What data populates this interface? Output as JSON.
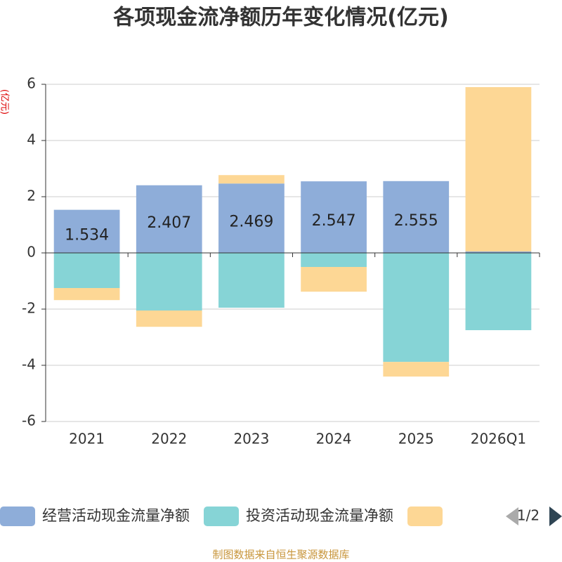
{
  "chart_data": {
    "type": "bar",
    "stacked": true,
    "title": "各项现金流净额历年变化情况(亿元)",
    "y_label": "(亿元)",
    "categories": [
      "2021",
      "2022",
      "2023",
      "2024",
      "2025",
      "2026Q1"
    ],
    "series": [
      {
        "name": "经营活动现金流量净额",
        "color": "#8eadd9",
        "values": [
          1.534,
          2.407,
          2.469,
          2.547,
          2.555,
          0.05
        ],
        "show_labels": true
      },
      {
        "name": "投资活动现金流量净额",
        "color": "#86d4d6",
        "values": [
          -1.25,
          -2.05,
          -1.95,
          -0.5,
          -3.88,
          -2.75
        ]
      },
      {
        "color": "#fdd795",
        "values": [
          -0.43,
          -0.58,
          0.3,
          -0.88,
          -0.52,
          5.85
        ]
      }
    ],
    "ylim": [
      -6,
      6
    ],
    "yticks": [
      -6,
      -4,
      -2,
      0,
      2,
      4,
      6
    ],
    "grid": true,
    "legend_page": "1/2",
    "source": "制图数据来自恒生聚源数据库"
  }
}
